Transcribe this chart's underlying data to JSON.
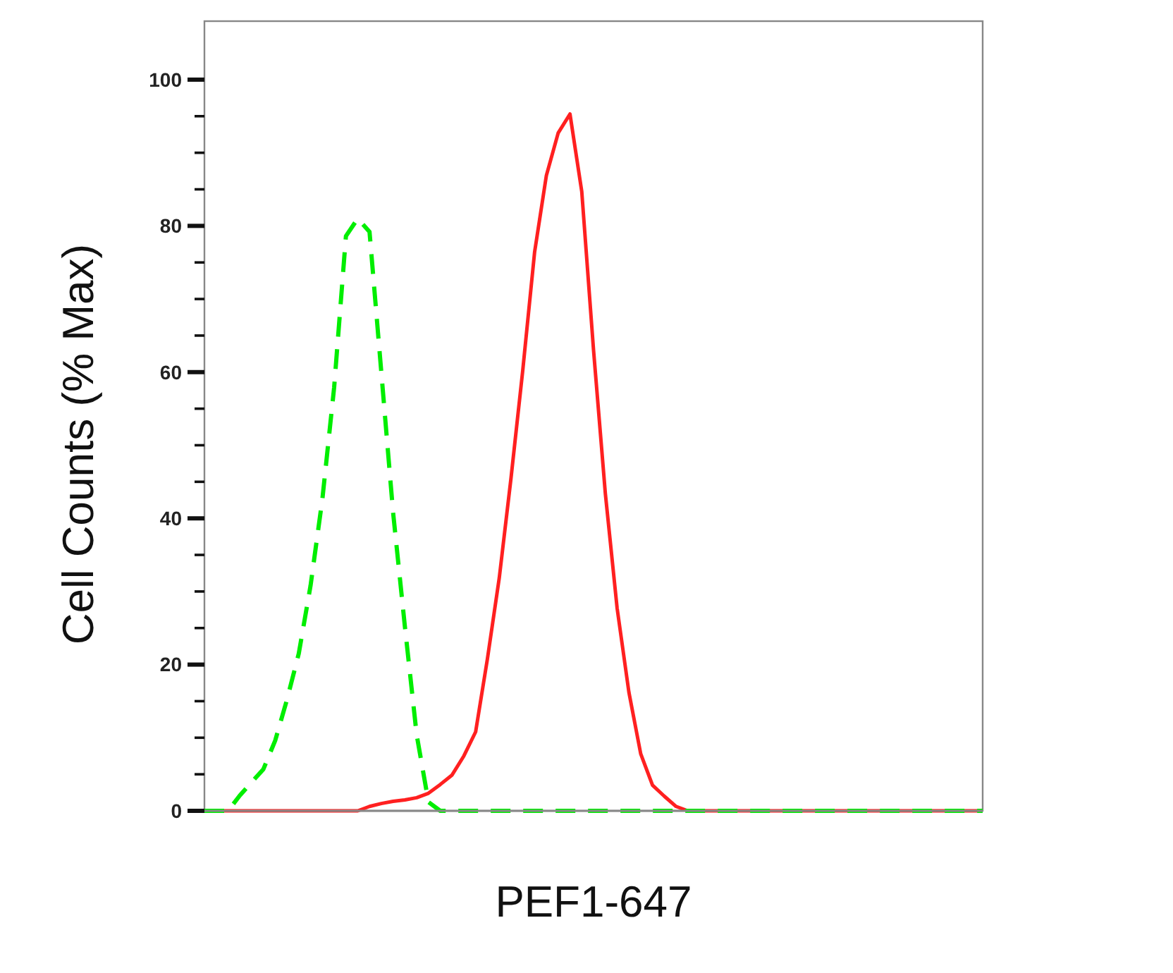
{
  "chart_data": {
    "type": "line",
    "xlabel": "PEF1-647",
    "ylabel": "Cell Counts (% Max)",
    "ylim": [
      0,
      108
    ],
    "categories": [
      null,
      null,
      null,
      null,
      null,
      null,
      null,
      null,
      null,
      null,
      null,
      null,
      null,
      null,
      null,
      null,
      null,
      null,
      null,
      null,
      null,
      null,
      null,
      null,
      null,
      null,
      null,
      null,
      null,
      null,
      null,
      null,
      null,
      null,
      null,
      null,
      null,
      null,
      null,
      null,
      null,
      null,
      null,
      null,
      null,
      null,
      null,
      null,
      null,
      null,
      null,
      null,
      null,
      null,
      null,
      null,
      null,
      null,
      null,
      null,
      null,
      null,
      null,
      null,
      null,
      null,
      null
    ],
    "yticks": [
      0,
      {
        "value": 5,
        "label": null
      },
      {
        "value": 10,
        "label": null
      },
      {
        "value": 15,
        "label": null
      },
      20,
      {
        "value": 25,
        "label": null
      },
      {
        "value": 30,
        "label": null
      },
      {
        "value": 35,
        "label": null
      },
      40,
      {
        "value": 45,
        "label": null
      },
      {
        "value": 50,
        "label": null
      },
      {
        "value": 55,
        "label": null
      },
      60,
      {
        "value": 65,
        "label": null
      },
      {
        "value": 70,
        "label": null
      },
      {
        "value": 75,
        "label": null
      },
      80,
      {
        "value": 85,
        "label": null
      },
      {
        "value": 90,
        "label": null
      },
      {
        "value": 95,
        "label": null
      },
      100
    ],
    "tick_labels": "y",
    "series": [
      {
        "color": "#00ee00",
        "line_style": "dashed",
        "values": [
          0,
          0,
          0,
          2.1,
          3.9,
          5.7,
          9.6,
          15.2,
          21.5,
          30.8,
          42.6,
          57.9,
          78.6,
          81,
          79.2,
          60,
          40.8,
          25.2,
          10.4,
          1.2,
          0,
          0,
          0,
          0,
          0,
          0,
          0,
          0,
          0,
          0,
          0,
          0,
          0,
          0,
          0,
          0,
          0,
          0,
          0,
          0,
          0,
          0,
          0,
          0,
          0,
          0,
          0,
          0,
          0,
          0,
          0,
          0,
          0,
          0,
          0,
          0,
          0,
          0,
          0,
          0,
          0,
          0,
          0,
          0,
          0,
          0,
          0
        ]
      },
      {
        "color": "#ff2020",
        "line_style": "solid",
        "values": [
          0,
          0,
          0,
          0,
          0,
          0,
          0,
          0,
          0,
          0,
          0,
          0,
          0,
          0,
          0.6,
          1,
          1.3,
          1.5,
          1.8,
          2.4,
          3.6,
          4.9,
          7.5,
          10.8,
          20.8,
          31.8,
          45.5,
          60.3,
          76.4,
          86.9,
          92.7,
          95.3,
          84.7,
          63,
          43.4,
          27.7,
          16.2,
          7.8,
          3.5,
          2,
          0.6,
          0,
          0,
          0,
          0,
          0,
          0,
          0,
          0,
          0,
          0,
          0,
          0,
          0,
          0,
          0,
          0,
          0,
          0,
          0,
          0,
          0,
          0,
          0,
          0,
          0,
          0
        ]
      }
    ]
  }
}
